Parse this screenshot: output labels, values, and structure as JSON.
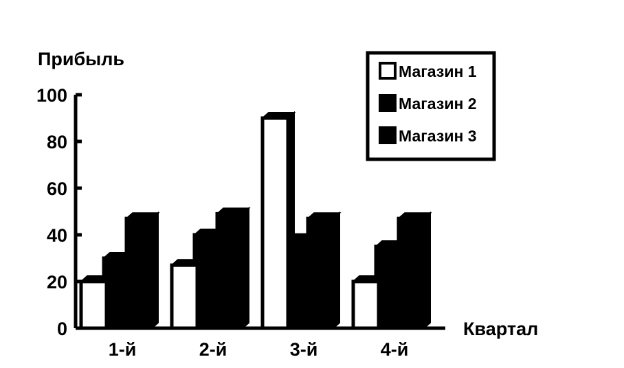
{
  "chart_data": {
    "type": "bar",
    "ylabel": "Прибыль",
    "xlabel": "Квартал",
    "categories": [
      "1-й",
      "2-й",
      "3-й",
      "4-й"
    ],
    "yticks": [
      "0",
      "20",
      "40",
      "60",
      "80",
      "100"
    ],
    "ylim": [
      0,
      100
    ],
    "series": [
      {
        "name": "Магазин 1",
        "values": [
          20,
          27,
          90,
          20
        ],
        "color": "#ffffff"
      },
      {
        "name": "Магазин 2",
        "values": [
          30,
          40,
          38,
          35
        ],
        "color": "#000000"
      },
      {
        "name": "Магазин 3",
        "values": [
          47,
          49,
          47,
          47
        ],
        "color": "#000000"
      }
    ],
    "legend_position": "top-right",
    "grid": false,
    "bar_style": "3d"
  }
}
